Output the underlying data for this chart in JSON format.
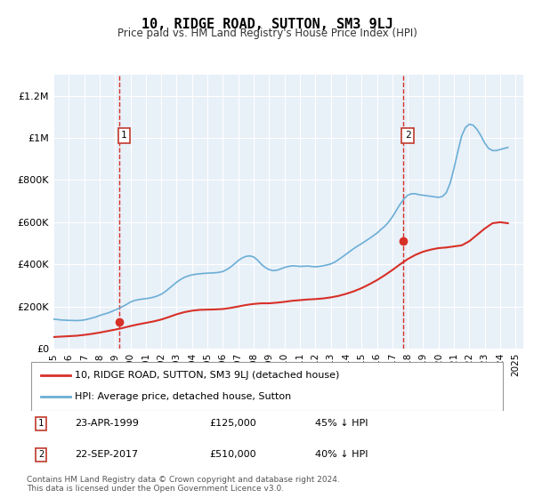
{
  "title": "10, RIDGE ROAD, SUTTON, SM3 9LJ",
  "subtitle": "Price paid vs. HM Land Registry's House Price Index (HPI)",
  "hpi_color": "#6baed6",
  "price_color": "#d73027",
  "vline_color": "#d73027",
  "bg_color": "#e8f0f8",
  "annotation1": {
    "label": "1",
    "date_idx": 4.3,
    "year": 1999.3,
    "price": 125000,
    "text": "23-APR-1999",
    "amount": "£125,000",
    "pct": "45% ↓ HPI"
  },
  "annotation2": {
    "label": "2",
    "date_idx": 22.7,
    "year": 2017.7,
    "price": 510000,
    "text": "22-SEP-2017",
    "amount": "£510,000",
    "pct": "40% ↓ HPI"
  },
  "legend_line1": "10, RIDGE ROAD, SUTTON, SM3 9LJ (detached house)",
  "legend_line2": "HPI: Average price, detached house, Sutton",
  "footer": "Contains HM Land Registry data © Crown copyright and database right 2024.\nThis data is licensed under the Open Government Licence v3.0.",
  "xlabel_years": [
    1995,
    1996,
    1997,
    1998,
    1999,
    2000,
    2001,
    2002,
    2003,
    2004,
    2005,
    2006,
    2007,
    2008,
    2009,
    2010,
    2011,
    2012,
    2013,
    2014,
    2015,
    2016,
    2017,
    2018,
    2019,
    2020,
    2021,
    2022,
    2023,
    2024,
    2025
  ],
  "hpi_years": [
    1995.0,
    1995.25,
    1995.5,
    1995.75,
    1996.0,
    1996.25,
    1996.5,
    1996.75,
    1997.0,
    1997.25,
    1997.5,
    1997.75,
    1998.0,
    1998.25,
    1998.5,
    1998.75,
    1999.0,
    1999.25,
    1999.5,
    1999.75,
    2000.0,
    2000.25,
    2000.5,
    2000.75,
    2001.0,
    2001.25,
    2001.5,
    2001.75,
    2002.0,
    2002.25,
    2002.5,
    2002.75,
    2003.0,
    2003.25,
    2003.5,
    2003.75,
    2004.0,
    2004.25,
    2004.5,
    2004.75,
    2005.0,
    2005.25,
    2005.5,
    2005.75,
    2006.0,
    2006.25,
    2006.5,
    2006.75,
    2007.0,
    2007.25,
    2007.5,
    2007.75,
    2008.0,
    2008.25,
    2008.5,
    2008.75,
    2009.0,
    2009.25,
    2009.5,
    2009.75,
    2010.0,
    2010.25,
    2010.5,
    2010.75,
    2011.0,
    2011.25,
    2011.5,
    2011.75,
    2012.0,
    2012.25,
    2012.5,
    2012.75,
    2013.0,
    2013.25,
    2013.5,
    2013.75,
    2014.0,
    2014.25,
    2014.5,
    2014.75,
    2015.0,
    2015.25,
    2015.5,
    2015.75,
    2016.0,
    2016.25,
    2016.5,
    2016.75,
    2017.0,
    2017.25,
    2017.5,
    2017.75,
    2018.0,
    2018.25,
    2018.5,
    2018.75,
    2019.0,
    2019.25,
    2019.5,
    2019.75,
    2020.0,
    2020.25,
    2020.5,
    2020.75,
    2021.0,
    2021.25,
    2021.5,
    2021.75,
    2022.0,
    2022.25,
    2022.5,
    2022.75,
    2023.0,
    2023.25,
    2023.5,
    2023.75,
    2024.0,
    2024.25,
    2024.5
  ],
  "hpi_values": [
    140000,
    138000,
    136000,
    135000,
    134000,
    133500,
    133000,
    134000,
    136000,
    140000,
    145000,
    150000,
    157000,
    163000,
    168000,
    175000,
    183000,
    191000,
    200000,
    210000,
    221000,
    228000,
    232000,
    235000,
    237000,
    240000,
    244000,
    250000,
    258000,
    270000,
    285000,
    300000,
    315000,
    328000,
    338000,
    345000,
    350000,
    353000,
    355000,
    357000,
    358000,
    359000,
    360000,
    362000,
    366000,
    375000,
    387000,
    402000,
    418000,
    430000,
    438000,
    440000,
    435000,
    420000,
    400000,
    385000,
    375000,
    370000,
    372000,
    378000,
    385000,
    390000,
    393000,
    392000,
    390000,
    391000,
    392000,
    390000,
    388000,
    390000,
    393000,
    397000,
    402000,
    410000,
    422000,
    435000,
    448000,
    462000,
    475000,
    487000,
    498000,
    510000,
    522000,
    535000,
    548000,
    565000,
    580000,
    600000,
    625000,
    655000,
    685000,
    710000,
    728000,
    735000,
    735000,
    730000,
    728000,
    725000,
    723000,
    720000,
    718000,
    722000,
    740000,
    785000,
    855000,
    935000,
    1010000,
    1050000,
    1065000,
    1060000,
    1040000,
    1010000,
    975000,
    950000,
    940000,
    940000,
    945000,
    950000,
    955000
  ],
  "price_years": [
    1995.0,
    1995.5,
    1996.0,
    1996.5,
    1997.0,
    1997.5,
    1998.0,
    1998.5,
    1999.0,
    1999.5,
    2000.0,
    2000.5,
    2001.0,
    2001.5,
    2002.0,
    2002.5,
    2003.0,
    2003.5,
    2004.0,
    2004.5,
    2005.0,
    2005.5,
    2006.0,
    2006.5,
    2007.0,
    2007.5,
    2008.0,
    2008.5,
    2009.0,
    2009.5,
    2010.0,
    2010.5,
    2011.0,
    2011.5,
    2012.0,
    2012.5,
    2013.0,
    2013.5,
    2014.0,
    2014.5,
    2015.0,
    2015.5,
    2016.0,
    2016.5,
    2017.0,
    2017.5,
    2018.0,
    2018.5,
    2019.0,
    2019.5,
    2020.0,
    2020.5,
    2021.0,
    2021.5,
    2022.0,
    2022.5,
    2023.0,
    2023.5,
    2024.0,
    2024.5
  ],
  "price_values": [
    55000,
    57000,
    59000,
    61000,
    65000,
    70000,
    76000,
    83000,
    90000,
    98000,
    107000,
    115000,
    122000,
    129000,
    138000,
    150000,
    163000,
    173000,
    180000,
    184000,
    185000,
    186000,
    188000,
    193000,
    200000,
    207000,
    212000,
    215000,
    215000,
    218000,
    222000,
    227000,
    230000,
    233000,
    235000,
    238000,
    243000,
    250000,
    260000,
    272000,
    287000,
    305000,
    325000,
    348000,
    373000,
    400000,
    425000,
    445000,
    460000,
    470000,
    477000,
    480000,
    485000,
    490000,
    510000,
    540000,
    570000,
    595000,
    600000,
    595000
  ],
  "ylim": [
    0,
    1300000
  ],
  "xlim": [
    1995,
    2025.5
  ],
  "yticks": [
    0,
    200000,
    400000,
    600000,
    800000,
    1000000,
    1200000
  ],
  "ytick_labels": [
    "£0",
    "£200K",
    "£400K",
    "£600K",
    "£800K",
    "£1M",
    "£1.2M"
  ]
}
